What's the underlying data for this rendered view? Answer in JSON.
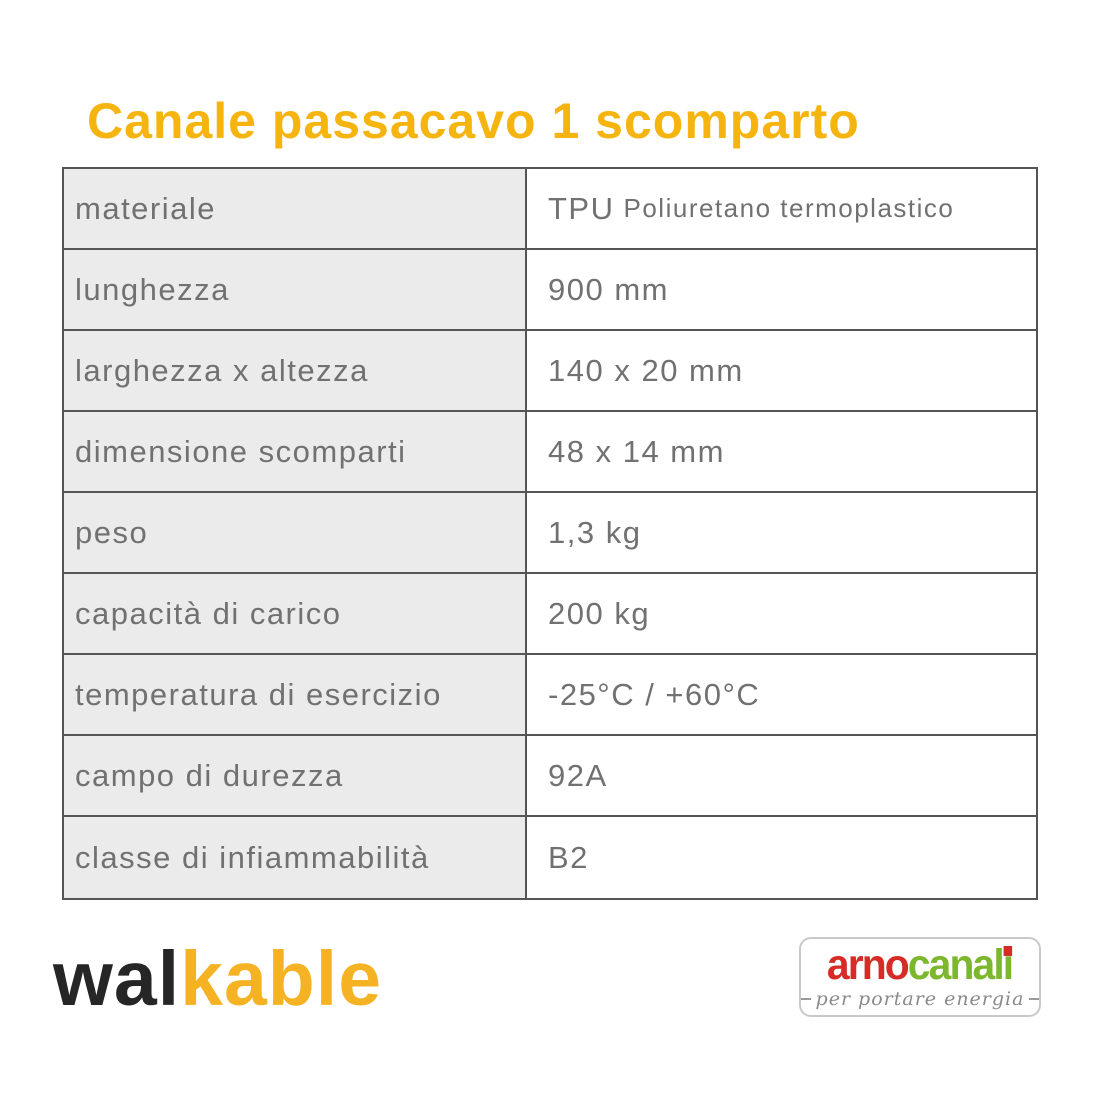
{
  "title": "Canale passacavo 1 scomparto",
  "table": {
    "rows": [
      {
        "label": "materiale",
        "value_strong": "TPU",
        "value_small": "Poliuretano termoplastico"
      },
      {
        "label": "lunghezza",
        "value": "900 mm"
      },
      {
        "label": "larghezza x altezza",
        "value": "140 x 20 mm"
      },
      {
        "label": "dimensione scomparti",
        "value": "48 x 14 mm"
      },
      {
        "label": "peso",
        "value": "1,3 kg"
      },
      {
        "label": "capacità di carico",
        "value": "200 kg"
      },
      {
        "label": "temperatura di esercizio",
        "value": "-25°C / +60°C"
      },
      {
        "label": "campo di durezza",
        "value": "92A"
      },
      {
        "label": "classe di infiammabilità",
        "value": "B2"
      }
    ]
  },
  "footer": {
    "walkable_dark": "wal",
    "walkable_yellow": "kable",
    "arno_red": "arno",
    "arno_green": "canali",
    "arno_tagline": "per portare energia"
  },
  "colors": {
    "title_yellow": "#F6B40F",
    "walkable_yellow": "#F5B324",
    "walkable_dark": "#262626",
    "arno_red": "#D62B26",
    "arno_green": "#7DB72E",
    "table_border": "#555555",
    "label_cell_bg": "#EBEBEB",
    "table_text_gray": "#717171"
  }
}
